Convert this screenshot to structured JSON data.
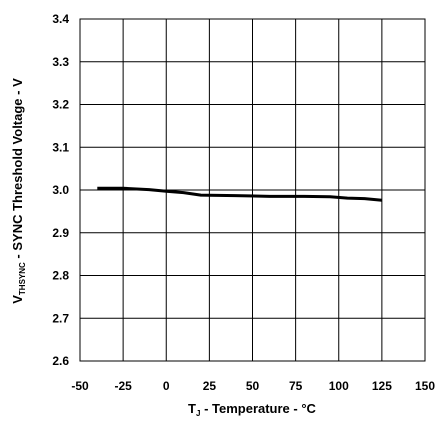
{
  "chart_data": {
    "type": "line",
    "xlabel_main": "T",
    "xlabel_sub": "J",
    "xlabel_rest": " - Temperature - °C",
    "ylabel_main": "V",
    "ylabel_sub": "THSYNC",
    "ylabel_rest": " - SYNC Threshold Voltage - V",
    "xlim": [
      -50,
      150
    ],
    "ylim": [
      2.6,
      3.4
    ],
    "x_ticks": [
      -50,
      -25,
      0,
      25,
      50,
      75,
      100,
      125,
      150
    ],
    "y_ticks": [
      2.6,
      2.7,
      2.8,
      2.9,
      3.0,
      3.1,
      3.2,
      3.3,
      3.4
    ],
    "grid": true,
    "series": [
      {
        "x": [
          -40,
          -25,
          -10,
          0,
          10,
          20,
          40,
          60,
          80,
          95,
          105,
          115,
          125
        ],
        "y": [
          3.004,
          3.004,
          3.001,
          2.997,
          2.994,
          2.988,
          2.987,
          2.985,
          2.985,
          2.984,
          2.981,
          2.98,
          2.976
        ],
        "color": "#000000"
      }
    ]
  }
}
